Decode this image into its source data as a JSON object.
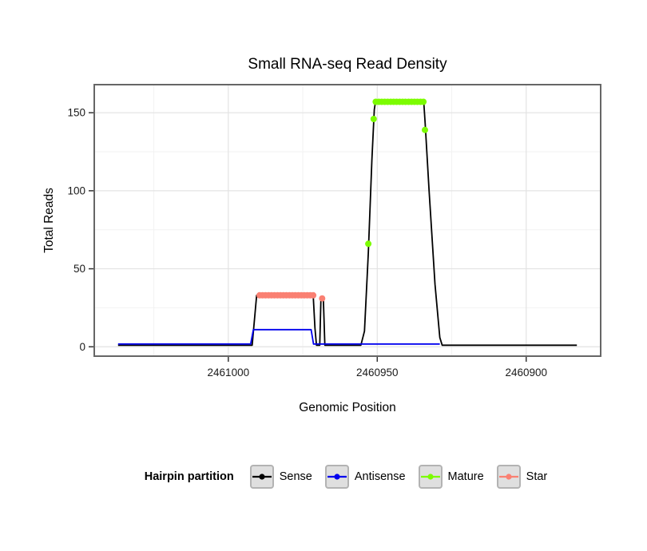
{
  "chart_data": {
    "type": "line",
    "title": "Small RNA-seq Read Density",
    "xlabel": "Genomic Position",
    "ylabel": "Total Reads",
    "x_domain": [
      2461045,
      2460875
    ],
    "y_domain": [
      -6,
      168
    ],
    "x_axis_reversed": true,
    "x_major_ticks": [
      2461000,
      2460950,
      2460900
    ],
    "x_minor_ticks": [
      2461025,
      2460975,
      2460925
    ],
    "y_major_ticks": [
      0,
      50,
      100,
      150
    ],
    "y_minor_ticks": [
      25,
      75,
      125
    ],
    "grid": true,
    "grid_major_color": "#E3E3E3",
    "grid_minor_color": "#F2F2F2",
    "border_color": "#666666",
    "legend_position": "bottom",
    "series": [
      {
        "name": "Sense",
        "type": "line",
        "color": "#000000",
        "points": [
          [
            2461037,
            1
          ],
          [
            2460992,
            1
          ],
          [
            2460990.5,
            33
          ],
          [
            2460971.5,
            33
          ],
          [
            2460970.9,
            12
          ],
          [
            2460970.4,
            1
          ],
          [
            2460969.3,
            1
          ],
          [
            2460968.9,
            31
          ],
          [
            2460968.1,
            31
          ],
          [
            2460967.6,
            1
          ],
          [
            2460955.5,
            1
          ],
          [
            2460954.3,
            10
          ],
          [
            2460953,
            60
          ],
          [
            2460951.8,
            120
          ],
          [
            2460951,
            152
          ],
          [
            2460950.6,
            157
          ],
          [
            2460934.4,
            157
          ],
          [
            2460933.9,
            143
          ],
          [
            2460932.6,
            100
          ],
          [
            2460930.6,
            40
          ],
          [
            2460929,
            6
          ],
          [
            2460928.2,
            1
          ],
          [
            2460883,
            1
          ]
        ]
      },
      {
        "name": "Antisense",
        "type": "line",
        "color": "#0000EE",
        "points": [
          [
            2461037,
            1.8
          ],
          [
            2460992.5,
            1.8
          ],
          [
            2460991.6,
            11
          ],
          [
            2460972.2,
            11
          ],
          [
            2460971.4,
            1.8
          ],
          [
            2460929,
            1.8
          ]
        ]
      },
      {
        "name": "Star",
        "type": "points",
        "color": "#FA8072",
        "point_radius": 4,
        "points": [
          [
            2460989.5,
            33
          ],
          [
            2460988.5,
            33
          ],
          [
            2460987.5,
            33
          ],
          [
            2460986.5,
            33
          ],
          [
            2460985.5,
            33
          ],
          [
            2460984.5,
            33
          ],
          [
            2460983.5,
            33
          ],
          [
            2460982.5,
            33
          ],
          [
            2460981.5,
            33
          ],
          [
            2460980.5,
            33
          ],
          [
            2460979.5,
            33
          ],
          [
            2460978.5,
            33
          ],
          [
            2460977.5,
            33
          ],
          [
            2460976.5,
            33
          ],
          [
            2460975.5,
            33
          ],
          [
            2460974.5,
            33
          ],
          [
            2460973.5,
            33
          ],
          [
            2460972.5,
            33
          ],
          [
            2460971.5,
            33
          ],
          [
            2460968.5,
            31
          ]
        ]
      },
      {
        "name": "Mature",
        "type": "points",
        "color": "#7CFC00",
        "point_radius": 4,
        "points": [
          [
            2460953,
            66
          ],
          [
            2460951.2,
            146
          ],
          [
            2460950.5,
            157
          ],
          [
            2460949.5,
            157
          ],
          [
            2460948.5,
            157
          ],
          [
            2460947.5,
            157
          ],
          [
            2460946.5,
            157
          ],
          [
            2460945.5,
            157
          ],
          [
            2460944.5,
            157
          ],
          [
            2460943.5,
            157
          ],
          [
            2460942.5,
            157
          ],
          [
            2460941.5,
            157
          ],
          [
            2460940.5,
            157
          ],
          [
            2460939.5,
            157
          ],
          [
            2460938.5,
            157
          ],
          [
            2460937.5,
            157
          ],
          [
            2460936.5,
            157
          ],
          [
            2460935.5,
            157
          ],
          [
            2460934.5,
            157
          ],
          [
            2460934,
            139
          ]
        ]
      }
    ]
  },
  "legend": {
    "title": "Hairpin partition",
    "items": [
      {
        "label": "Sense",
        "color": "#000000"
      },
      {
        "label": "Antisense",
        "color": "#0000EE"
      },
      {
        "label": "Mature",
        "color": "#7CFC00"
      },
      {
        "label": "Star",
        "color": "#FA8072"
      }
    ]
  }
}
